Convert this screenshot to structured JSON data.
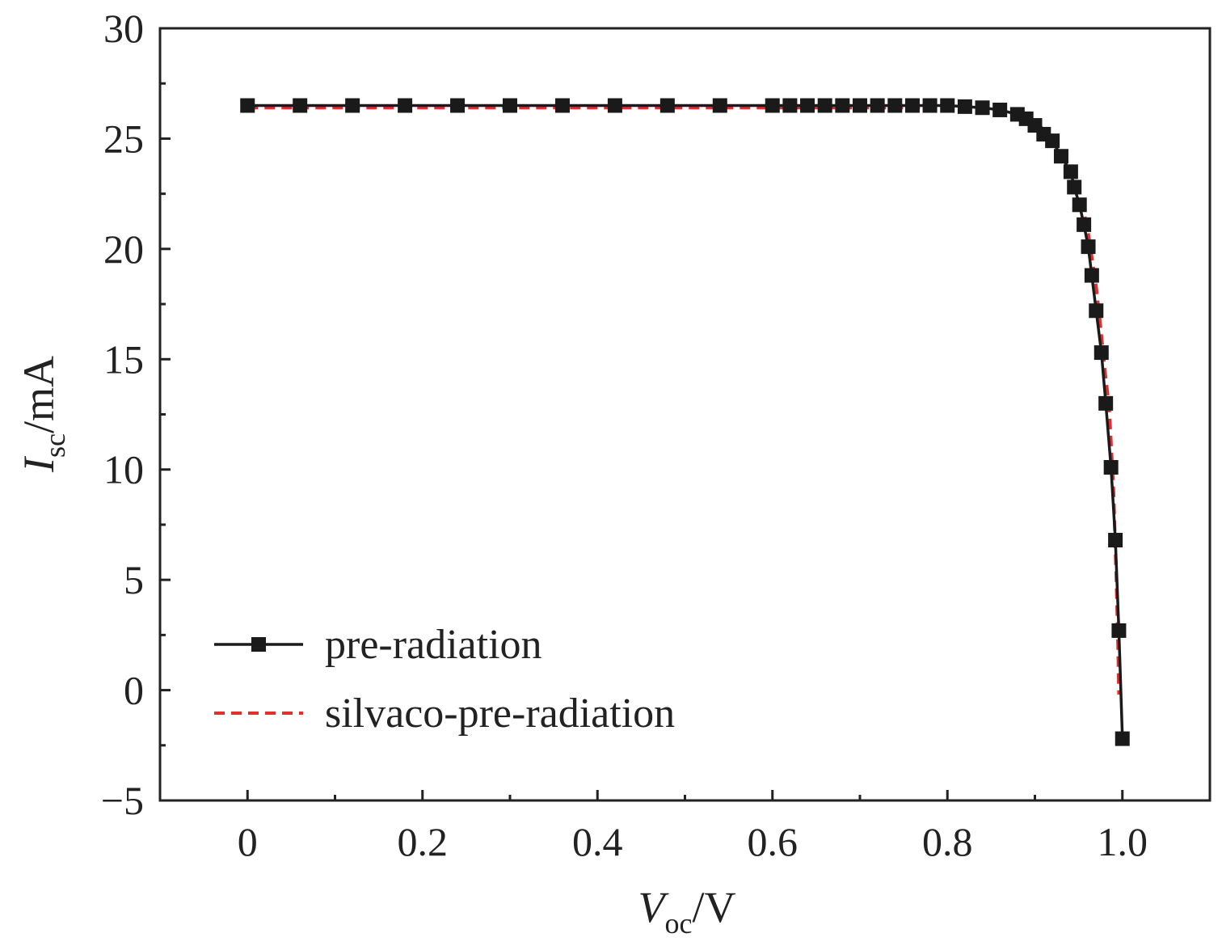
{
  "chart_data": {
    "type": "line",
    "xlabel": {
      "main": "V",
      "sub": "oc",
      "unit": "/V"
    },
    "ylabel": {
      "main": "I",
      "sub": "sc",
      "unit": "/mA"
    },
    "xlim": [
      -0.1,
      1.1
    ],
    "ylim": [
      -5,
      30
    ],
    "xticks": [
      0,
      0.2,
      0.4,
      0.6,
      0.8,
      {
        "value": 1,
        "label": "1.0"
      }
    ],
    "yticks": [
      {
        "value": -5,
        "label": "−5"
      },
      0,
      5,
      10,
      15,
      20,
      25,
      30
    ],
    "xminorticks": [
      0.1,
      0.3,
      0.5,
      0.7,
      0.9
    ],
    "yminorticks": [
      -2.5,
      2.5,
      7.5,
      12.5,
      17.5,
      22.5,
      27.5
    ],
    "legend": "lower left",
    "series": [
      {
        "name": "pre-radiation",
        "color": "#1a1a1a",
        "marker": "square",
        "dash": false,
        "x": [
          0,
          0.06,
          0.12,
          0.18,
          0.24,
          0.3,
          0.36,
          0.42,
          0.48,
          0.54,
          0.6,
          0.62,
          0.64,
          0.66,
          0.68,
          0.7,
          0.72,
          0.74,
          0.76,
          0.78,
          0.8,
          0.82,
          0.84,
          0.86,
          0.88,
          0.89,
          0.9,
          0.91,
          0.92,
          0.93,
          0.941,
          0.945,
          0.951,
          0.956,
          0.961,
          0.965,
          0.97,
          0.976,
          0.981,
          0.987,
          0.992,
          0.996,
          1.0
        ],
        "values": [
          26.5,
          26.5,
          26.5,
          26.5,
          26.5,
          26.5,
          26.5,
          26.5,
          26.5,
          26.5,
          26.5,
          26.5,
          26.5,
          26.5,
          26.5,
          26.5,
          26.5,
          26.5,
          26.5,
          26.5,
          26.5,
          26.45,
          26.4,
          26.3,
          26.1,
          25.9,
          25.6,
          25.2,
          24.9,
          24.2,
          23.5,
          22.8,
          22.0,
          21.1,
          20.1,
          18.8,
          17.2,
          15.3,
          13.0,
          10.1,
          6.8,
          2.7,
          -2.2
        ]
      },
      {
        "name": "silvaco-pre-radiation",
        "color": "#e03030",
        "marker": "none",
        "dash": true,
        "x": [
          0,
          0.2,
          0.4,
          0.6,
          0.7,
          0.8,
          0.84,
          0.86,
          0.88,
          0.9,
          0.92,
          0.94,
          0.95,
          0.96,
          0.97,
          0.975,
          0.98,
          0.985,
          0.99,
          0.993,
          0.995,
          0.996
        ],
        "values": [
          26.4,
          26.4,
          26.4,
          26.4,
          26.4,
          26.4,
          26.35,
          26.3,
          26.2,
          25.8,
          25.0,
          23.6,
          22.6,
          21.0,
          18.3,
          16.5,
          14.5,
          12.8,
          9.0,
          5.0,
          2.0,
          -0.2
        ]
      }
    ]
  }
}
